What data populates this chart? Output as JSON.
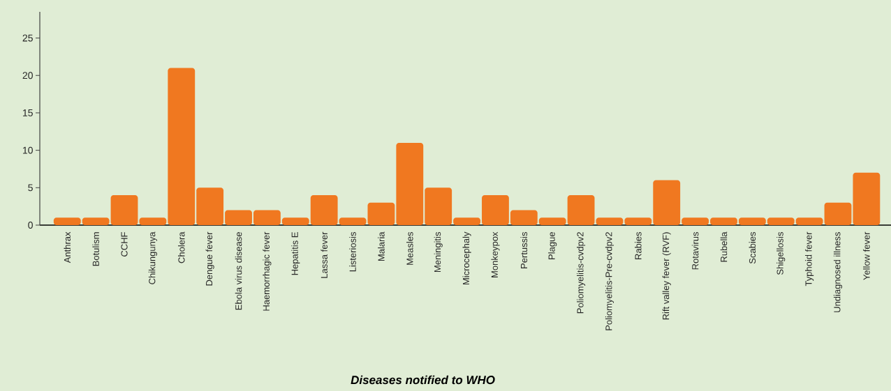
{
  "chart_data": {
    "type": "bar",
    "xlabel": "Diseases notified to WHO",
    "categories": [
      "Anthrax",
      "Botulism",
      "CCHF",
      "Chikungunya",
      "Cholera",
      "Dengue fever",
      "Ebola virus  disease",
      "Haemorrhagic fever",
      "Hepatitis E",
      "Lassa fever",
      "Listeriosis",
      "Malaria",
      "Measles",
      "Meningitis",
      "Microcephaly",
      "Monkeypox",
      "Pertussis",
      "Plague",
      "Poliomyelitis-cvdpv2",
      "Poliomyelitis-Pre-cvdpv2",
      "Rabies",
      "Rift valley fever (RVF)",
      "Rotavirus",
      "Rubella",
      "Scabies",
      "Shigellosis",
      "Typhoid fever",
      "Undiagnosed illness",
      "Yellow fever"
    ],
    "values": [
      1,
      1,
      4,
      1,
      21,
      5,
      2,
      2,
      1,
      4,
      1,
      3,
      11,
      5,
      1,
      4,
      2,
      1,
      4,
      1,
      1,
      6,
      1,
      1,
      1,
      1,
      1,
      3,
      7
    ],
    "color": "#f07820",
    "ylim": [
      0,
      28.5
    ],
    "yticks": [
      0,
      5,
      10,
      15,
      20,
      25
    ]
  }
}
